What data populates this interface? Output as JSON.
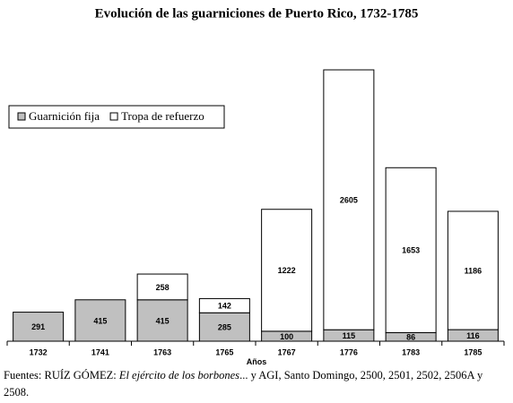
{
  "chart_data": {
    "type": "stacked_bar",
    "title": "Evolución de las guarniciones de Puerto Rico, 1732-1785",
    "x_label": "Años",
    "categories": [
      "1732",
      "1741",
      "1763",
      "1765",
      "1767",
      "1776",
      "1783",
      "1785"
    ],
    "series": [
      {
        "name": "Guarnición fija",
        "color": "#c0c0c0",
        "values": [
          291,
          415,
          415,
          285,
          100,
          115,
          86,
          116
        ]
      },
      {
        "name": "Tropa de refuerzo",
        "color": "#ffffff",
        "values": [
          null,
          null,
          258,
          142,
          1222,
          2605,
          1653,
          1186
        ]
      }
    ],
    "legend": "upper left",
    "source": {
      "lead": "Fuentes: RUÍZ GÓMEZ: ",
      "italic": "El ejército de los borbones",
      "tail": "... y AGI, Santo Domingo, 2500, 2501, 2502, 2506A y 2508."
    }
  }
}
